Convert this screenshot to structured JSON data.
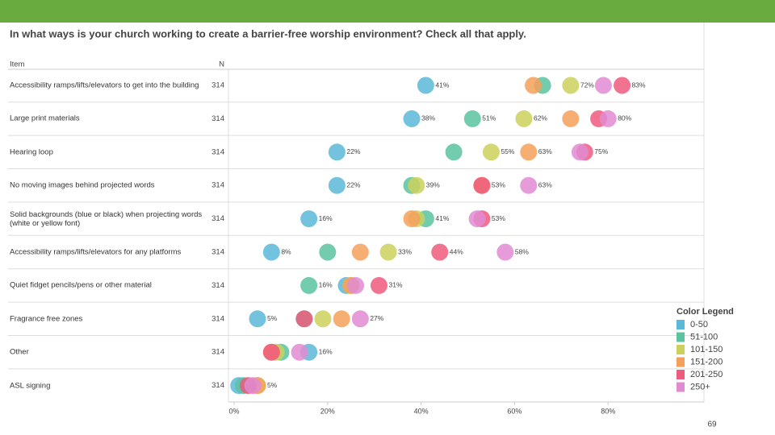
{
  "chart_data": {
    "type": "dotplot",
    "title": "In what ways is your church working to create a barrier-free worship environment? Check all that apply.",
    "item_header": "Item",
    "n_header": "N",
    "categories": [
      "Accessibility ramps/lifts/elevators to get into the building",
      "Large print materials",
      "Hearing loop",
      "No moving images behind projected words",
      "Solid backgrounds (blue or black) when projecting words (white or yellow font)",
      "Accessibility ramps/lifts/elevators for any platforms",
      "Quiet fidget pencils/pens or other material",
      "Fragrance free zones",
      "Other",
      "ASL signing"
    ],
    "n": [
      314,
      314,
      314,
      314,
      314,
      314,
      314,
      314,
      314,
      314
    ],
    "legend_title": "Color Legend",
    "series": [
      {
        "name": "0-50",
        "color": "#5bb8d9",
        "values": [
          41,
          38,
          22,
          22,
          16,
          8,
          24,
          5,
          16,
          1
        ],
        "value_labels": [
          "41%",
          "38%",
          "22%",
          "22%",
          "16%",
          "8%",
          null,
          "5%",
          "16%",
          null
        ]
      },
      {
        "name": "51-100",
        "color": "#5cc3a0",
        "values": [
          66,
          51,
          47,
          38,
          41,
          20,
          16,
          15,
          10,
          2
        ],
        "value_labels": [
          null,
          "51%",
          null,
          null,
          "41%",
          null,
          "16%",
          null,
          null,
          null
        ]
      },
      {
        "name": "101-150",
        "color": "#cbd15c",
        "values": [
          72,
          62,
          55,
          39,
          39,
          33,
          25,
          19,
          9,
          5
        ],
        "value_labels": [
          "72%",
          "62%",
          "55%",
          "39%",
          null,
          "33%",
          null,
          null,
          null,
          null
        ]
      },
      {
        "name": "151-200",
        "color": "#f5a05a",
        "values": [
          64,
          72,
          63,
          53,
          38,
          27,
          25,
          23,
          8,
          5
        ],
        "value_labels": [
          null,
          null,
          "63%",
          "53%",
          null,
          null,
          null,
          null,
          null,
          "5%"
        ]
      },
      {
        "name": "201-250",
        "color": "#ef5b7c",
        "values": [
          83,
          78,
          75,
          53,
          53,
          44,
          31,
          15,
          8,
          3
        ],
        "value_labels": [
          "83%",
          null,
          "75%",
          null,
          "53%",
          "44%",
          "31%",
          null,
          null,
          null
        ]
      },
      {
        "name": "250+",
        "color": "#e08bd2",
        "values": [
          79,
          80,
          74,
          63,
          52,
          58,
          26,
          27,
          14,
          4
        ],
        "value_labels": [
          null,
          "80%",
          null,
          "63%",
          null,
          "58%",
          null,
          "27%",
          null,
          null
        ]
      }
    ],
    "xlim": [
      0,
      100
    ],
    "xticks": [
      {
        "value": 0,
        "label": "0%"
      },
      {
        "value": 20,
        "label": "20%"
      },
      {
        "value": 40,
        "label": "40%"
      },
      {
        "value": 60,
        "label": "60%"
      },
      {
        "value": 80,
        "label": "80%"
      }
    ],
    "page_number": "69"
  }
}
